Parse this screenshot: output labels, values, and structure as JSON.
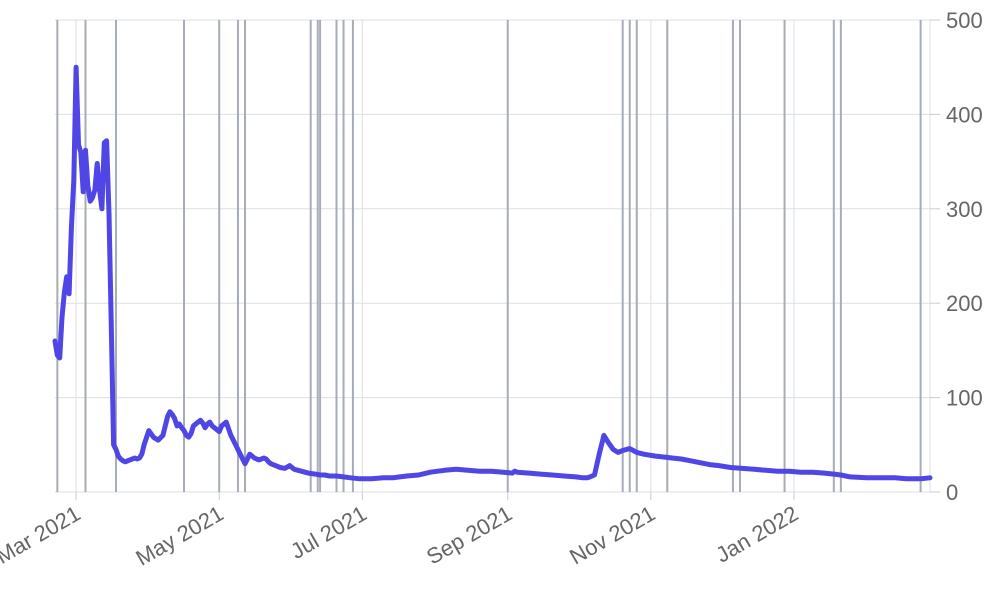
{
  "chart_data": {
    "type": "line",
    "title": "",
    "xlabel": "",
    "ylabel": "",
    "x_range": [
      "2021-02-20",
      "2022-02-28"
    ],
    "ylim": [
      0,
      500
    ],
    "y_ticks": [
      0,
      100,
      200,
      300,
      400,
      500
    ],
    "y_tick_labels": [
      "0",
      "100",
      "200",
      "300",
      "400",
      "500"
    ],
    "y_axis_side": "right",
    "x_ticks": [
      "2021-03-01",
      "2021-05-01",
      "2021-07-01",
      "2021-09-01",
      "2021-11-01",
      "2022-01-01"
    ],
    "x_tick_labels": [
      "Mar 2021",
      "May 2021",
      "Jul 2021",
      "Sep 2021",
      "Nov 2021",
      "Jan 2022"
    ],
    "grid": true,
    "line_color": "#4f46e5",
    "event_line_color": "#a6adb8",
    "event_dates": [
      "2021-02-21",
      "2021-03-05",
      "2021-03-18",
      "2021-04-16",
      "2021-05-01",
      "2021-05-09",
      "2021-05-12",
      "2021-06-09",
      "2021-06-12",
      "2021-06-13",
      "2021-06-20",
      "2021-06-23",
      "2021-06-27",
      "2021-09-01",
      "2021-10-20",
      "2021-10-23",
      "2021-10-26",
      "2021-11-08",
      "2021-12-06",
      "2021-12-09",
      "2021-12-28",
      "2022-01-18",
      "2022-01-21",
      "2022-02-24"
    ],
    "series": [
      {
        "x": [
          "2021-02-20",
          "2021-02-21",
          "2021-02-22",
          "2021-02-23",
          "2021-02-24",
          "2021-02-25",
          "2021-02-26",
          "2021-02-27",
          "2021-02-28",
          "2021-03-01",
          "2021-03-02",
          "2021-03-03",
          "2021-03-04",
          "2021-03-05",
          "2021-03-06",
          "2021-03-07",
          "2021-03-08",
          "2021-03-09",
          "2021-03-10",
          "2021-03-11",
          "2021-03-12",
          "2021-03-13",
          "2021-03-14",
          "2021-03-15",
          "2021-03-16",
          "2021-03-17",
          "2021-03-18",
          "2021-03-19",
          "2021-03-20",
          "2021-03-21",
          "2021-03-22",
          "2021-03-23",
          "2021-03-24",
          "2021-03-25",
          "2021-03-26",
          "2021-03-27",
          "2021-03-28",
          "2021-03-29",
          "2021-03-30",
          "2021-04-01",
          "2021-04-03",
          "2021-04-05",
          "2021-04-07",
          "2021-04-09",
          "2021-04-10",
          "2021-04-11",
          "2021-04-12",
          "2021-04-13",
          "2021-04-14",
          "2021-04-15",
          "2021-04-16",
          "2021-04-17",
          "2021-04-18",
          "2021-04-19",
          "2021-04-20",
          "2021-04-21",
          "2021-04-22",
          "2021-04-23",
          "2021-04-24",
          "2021-04-25",
          "2021-04-26",
          "2021-04-27",
          "2021-04-28",
          "2021-04-29",
          "2021-04-30",
          "2021-05-01",
          "2021-05-02",
          "2021-05-03",
          "2021-05-04",
          "2021-05-06",
          "2021-05-08",
          "2021-05-10",
          "2021-05-12",
          "2021-05-13",
          "2021-05-14",
          "2021-05-15",
          "2021-05-16",
          "2021-05-17",
          "2021-05-18",
          "2021-05-19",
          "2021-05-20",
          "2021-05-21",
          "2021-05-22",
          "2021-05-23",
          "2021-05-25",
          "2021-05-27",
          "2021-05-29",
          "2021-05-31",
          "2021-06-02",
          "2021-06-05",
          "2021-06-08",
          "2021-06-11",
          "2021-06-13",
          "2021-06-15",
          "2021-06-17",
          "2021-06-20",
          "2021-06-23",
          "2021-06-26",
          "2021-06-30",
          "2021-07-05",
          "2021-07-10",
          "2021-07-14",
          "2021-07-17",
          "2021-07-20",
          "2021-07-25",
          "2021-07-30",
          "2021-08-05",
          "2021-08-10",
          "2021-08-15",
          "2021-08-20",
          "2021-08-25",
          "2021-08-30",
          "2021-09-03",
          "2021-09-04",
          "2021-09-05",
          "2021-09-10",
          "2021-09-15",
          "2021-09-20",
          "2021-09-25",
          "2021-09-30",
          "2021-10-03",
          "2021-10-04",
          "2021-10-05",
          "2021-10-06",
          "2021-10-08",
          "2021-10-10",
          "2021-10-12",
          "2021-10-14",
          "2021-10-16",
          "2021-10-18",
          "2021-10-20",
          "2021-10-23",
          "2021-10-26",
          "2021-10-29",
          "2021-11-03",
          "2021-11-07",
          "2021-11-10",
          "2021-11-14",
          "2021-11-18",
          "2021-11-22",
          "2021-11-26",
          "2021-11-30",
          "2021-12-05",
          "2021-12-10",
          "2021-12-15",
          "2021-12-20",
          "2021-12-25",
          "2021-12-30",
          "2022-01-04",
          "2022-01-09",
          "2022-01-14",
          "2022-01-18",
          "2022-01-21",
          "2022-01-25",
          "2022-02-01",
          "2022-02-07",
          "2022-02-13",
          "2022-02-18",
          "2022-02-24",
          "2022-02-28"
        ],
        "y": [
          160,
          145,
          142,
          185,
          212,
          228,
          210,
          280,
          330,
          450,
          368,
          360,
          318,
          362,
          325,
          308,
          312,
          320,
          348,
          320,
          300,
          370,
          372,
          295,
          175,
          50,
          45,
          38,
          35,
          33,
          32,
          33,
          34,
          35,
          36,
          35,
          36,
          40,
          50,
          65,
          58,
          55,
          60,
          80,
          85,
          82,
          78,
          70,
          72,
          68,
          65,
          60,
          58,
          62,
          70,
          72,
          74,
          76,
          73,
          68,
          72,
          74,
          70,
          68,
          66,
          64,
          70,
          72,
          74,
          60,
          50,
          40,
          30,
          35,
          40,
          38,
          36,
          35,
          34,
          35,
          36,
          35,
          32,
          30,
          28,
          26,
          25,
          28,
          24,
          22,
          20,
          19,
          18,
          18,
          17,
          17,
          16,
          15,
          14,
          14,
          15,
          15,
          16,
          17,
          18,
          21,
          23,
          24,
          23,
          22,
          22,
          21,
          20,
          22,
          21,
          20,
          19,
          18,
          17,
          16,
          15,
          15,
          15,
          16,
          18,
          40,
          60,
          52,
          45,
          42,
          44,
          46,
          42,
          40,
          38,
          37,
          36,
          35,
          33,
          31,
          29,
          28,
          26,
          25,
          24,
          23,
          22,
          22,
          21,
          21,
          20,
          19,
          18,
          16,
          15,
          15,
          15,
          14,
          14,
          15
        ]
      }
    ]
  }
}
